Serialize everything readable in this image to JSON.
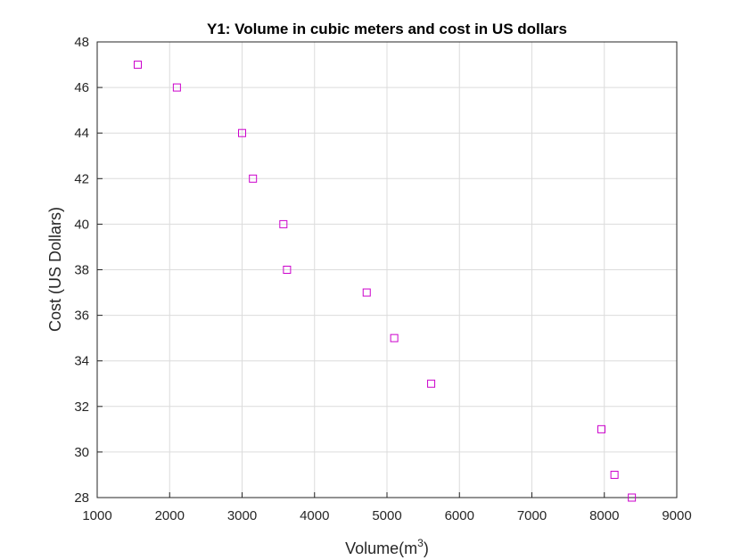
{
  "chart_data": {
    "type": "scatter",
    "title": "Y1: Volume in cubic meters and cost in US dollars",
    "xlabel": "Volume(m",
    "xlabel_sup": "3",
    "xlabel_close": ")",
    "ylabel": "Cost (US Dollars)",
    "xlim": [
      1000,
      9000
    ],
    "ylim": [
      28,
      48
    ],
    "xticks": [
      1000,
      2000,
      3000,
      4000,
      5000,
      6000,
      7000,
      8000,
      9000
    ],
    "yticks": [
      28,
      30,
      32,
      34,
      36,
      38,
      40,
      42,
      44,
      46,
      48
    ],
    "grid": true,
    "marker": "square",
    "color": "#cc00cc",
    "series": [
      {
        "x": [
          1560,
          2100,
          3000,
          3150,
          3570,
          3620,
          4720,
          5100,
          5610,
          7960,
          8140,
          8380
        ],
        "y": [
          47,
          46,
          44,
          42,
          40,
          38,
          37,
          35,
          33,
          31,
          29,
          28
        ]
      }
    ]
  }
}
